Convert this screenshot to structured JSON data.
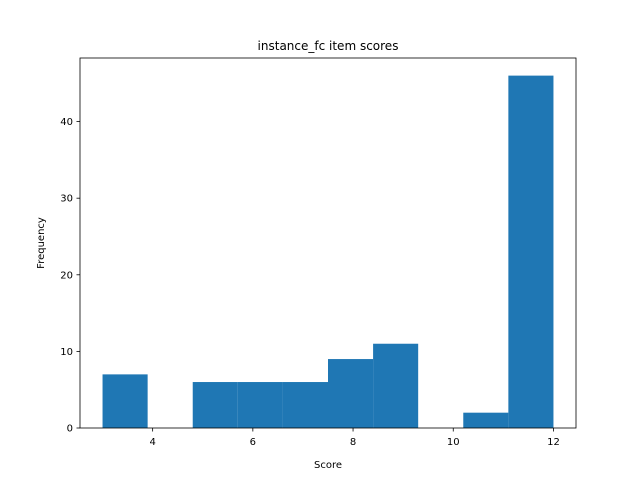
{
  "chart_data": {
    "type": "bar",
    "title": "instance_fc item scores",
    "xlabel": "Score",
    "ylabel": "Frequency",
    "xlim": [
      2.55,
      12.45
    ],
    "ylim": [
      0,
      48.3
    ],
    "grid": false,
    "legend": "none",
    "bar_color": "#1f77b4",
    "bins": [
      {
        "x0": 3.0,
        "x1": 3.9,
        "value": 7
      },
      {
        "x0": 3.9,
        "x1": 4.8,
        "value": 0
      },
      {
        "x0": 4.8,
        "x1": 5.7,
        "value": 6
      },
      {
        "x0": 5.7,
        "x1": 6.6,
        "value": 6
      },
      {
        "x0": 6.6,
        "x1": 7.5,
        "value": 6
      },
      {
        "x0": 7.5,
        "x1": 8.4,
        "value": 9
      },
      {
        "x0": 8.4,
        "x1": 9.3,
        "value": 11
      },
      {
        "x0": 9.3,
        "x1": 10.2,
        "value": 0
      },
      {
        "x0": 10.2,
        "x1": 11.1,
        "value": 2
      },
      {
        "x0": 11.1,
        "x1": 12.0,
        "value": 46
      }
    ],
    "xticks": [
      4,
      6,
      8,
      10,
      12
    ],
    "yticks": [
      0,
      10,
      20,
      30,
      40
    ]
  }
}
